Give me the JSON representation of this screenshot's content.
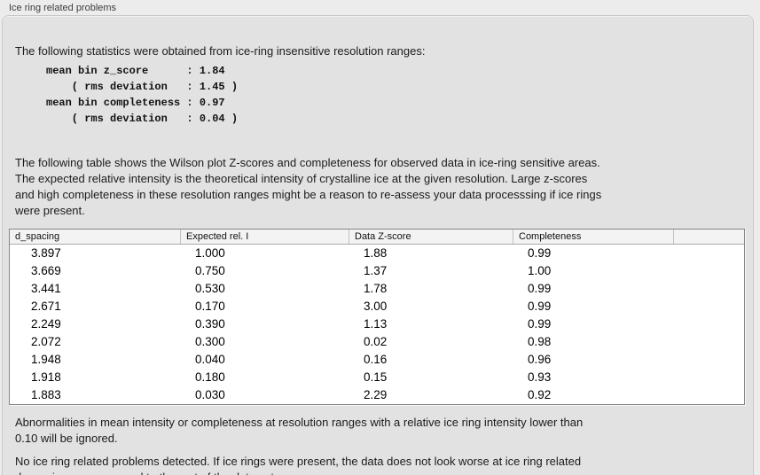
{
  "panel": {
    "title": "Ice ring related problems"
  },
  "intro": "The following statistics were obtained from ice-ring insensitive resolution ranges:",
  "stats_block": "mean bin z_score      : 1.84\n    ( rms deviation   : 1.45 )\nmean bin completeness : 0.97\n    ( rms deviation   : 0.04 )",
  "stats": {
    "mean_bin_z_score": "1.84",
    "z_score_rms_deviation": "1.45",
    "mean_bin_completeness": "0.97",
    "completeness_rms_deviation": "0.04"
  },
  "description": "The following table shows the Wilson plot Z-scores and completeness for observed data in ice-ring sensitive areas.\nThe expected relative intensity is the theoretical intensity of crystalline ice at the given resolution. Large z-scores\nand high completeness in these resolution ranges might be a reason to re-assess your data processsing if ice rings\nwere present.",
  "table": {
    "columns": [
      "d_spacing",
      "Expected rel. I",
      "Data Z-score",
      "Completeness",
      ""
    ],
    "rows": [
      [
        "3.897",
        "1.000",
        "1.88",
        "0.99"
      ],
      [
        "3.669",
        "0.750",
        "1.37",
        "1.00"
      ],
      [
        "3.441",
        "0.530",
        "1.78",
        "0.99"
      ],
      [
        "2.671",
        "0.170",
        "3.00",
        "0.99"
      ],
      [
        "2.249",
        "0.390",
        "1.13",
        "0.99"
      ],
      [
        "2.072",
        "0.300",
        "0.02",
        "0.98"
      ],
      [
        "1.948",
        "0.040",
        "0.16",
        "0.96"
      ],
      [
        "1.918",
        "0.180",
        "0.15",
        "0.93"
      ],
      [
        "1.883",
        "0.030",
        "2.29",
        "0.92"
      ]
    ]
  },
  "note_ignore": "Abnormalities in mean intensity or completeness at resolution ranges with a relative ice ring intensity lower than\n0.10 will be ignored.",
  "conclusion": "No ice ring related problems detected. If ice rings were present, the data does not look worse at ice ring related\nd_spacings as compared to the rest of the data set.",
  "colors": {
    "page_background": "#ececec",
    "groupbox_background": "#e2e2e2",
    "groupbox_border": "#c9c9c9",
    "table_border": "#868686",
    "table_header_background": "#f3f3f3",
    "body_text": "#1b1b1b",
    "title_text": "#3d3d3d"
  }
}
